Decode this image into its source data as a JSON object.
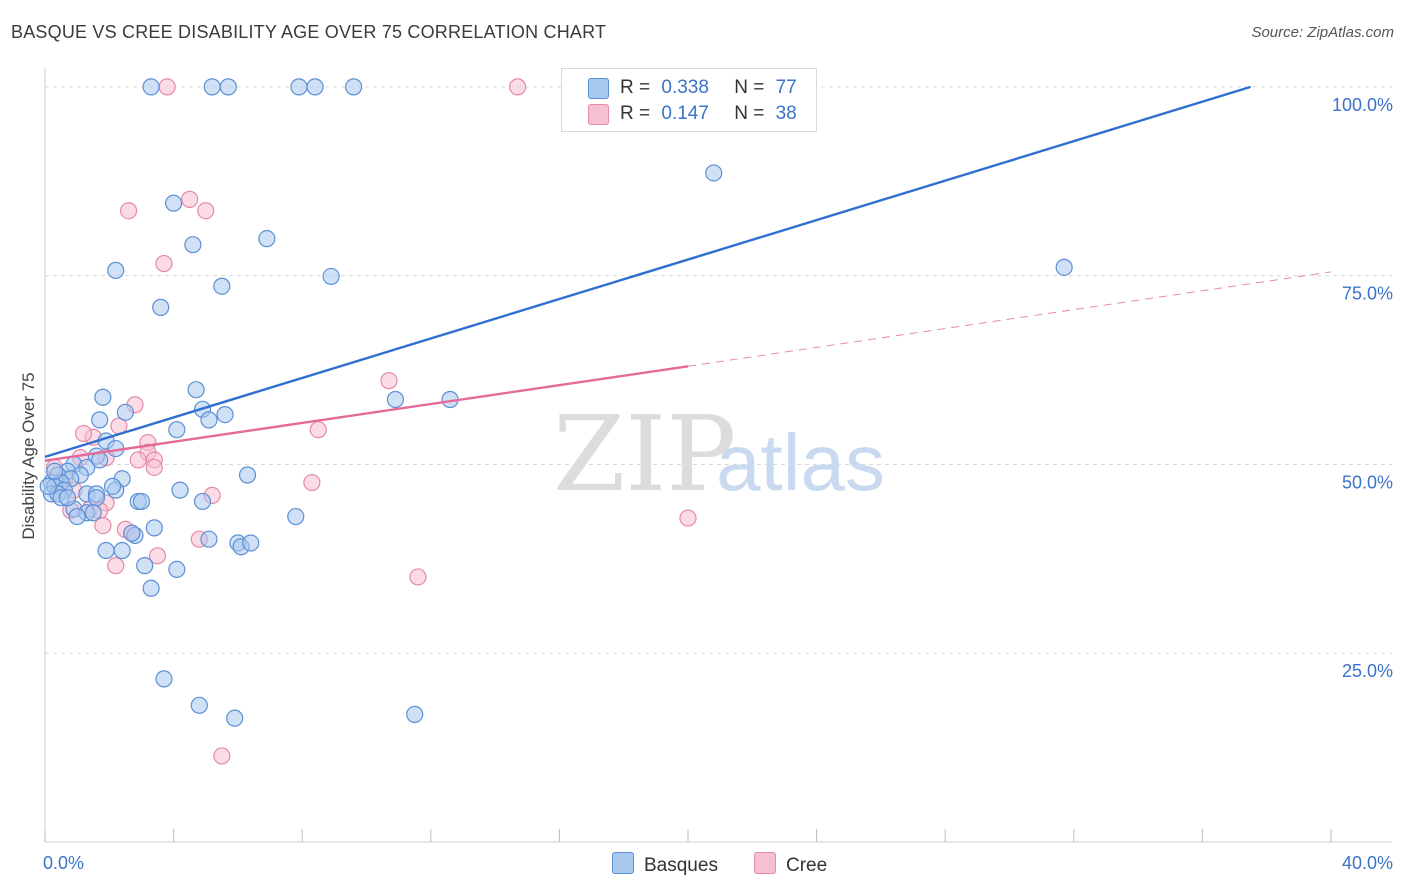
{
  "title": "BASQUE VS CREE DISABILITY AGE OVER 75 CORRELATION CHART",
  "source": "Source: ZipAtlas.com",
  "watermark": {
    "zip": "ZIP",
    "atlas": "atlas"
  },
  "legend": {
    "rows": [
      {
        "r_label": "R =",
        "r_value": "0.338",
        "n_label": "N =",
        "n_value": "77"
      },
      {
        "r_label": "R =",
        "r_value": "0.147",
        "n_label": "N =",
        "n_value": "38"
      }
    ]
  },
  "bottom_legend": {
    "basques": "Basques",
    "cree": "Cree"
  },
  "colors": {
    "basques_fill": "#a9c8ef",
    "basques_stroke": "#5b8fd6",
    "basques_line": "#2f6fd0",
    "cree_fill": "#f7c0d1",
    "cree_stroke": "#e58aa8",
    "cree_line": "#e46b98",
    "axis_text": "#3b73c9",
    "grid": "#d9d9d9"
  },
  "chart_data": {
    "type": "scatter",
    "title": "BASQUE VS CREE DISABILITY AGE OVER 75 CORRELATION CHART",
    "xlabel": "",
    "ylabel": "Disability Age Over 75",
    "xlim": [
      0,
      40
    ],
    "ylim": [
      0,
      102.5
    ],
    "x_tick_labels": [
      "0.0%",
      "40.0%"
    ],
    "y_ticks": [
      25,
      50,
      75,
      100
    ],
    "y_tick_labels": [
      "25.0%",
      "50.0%",
      "75.0%",
      "100.0%"
    ],
    "series": [
      {
        "name": "Basques",
        "r": 0.338,
        "n": 77,
        "trend": {
          "x0": 0,
          "y0": 51.0,
          "x1": 37.5,
          "y1": 100.0,
          "solid_until": 37.5
        },
        "points": [
          [
            3.3,
            100
          ],
          [
            5.2,
            100
          ],
          [
            5.7,
            100
          ],
          [
            7.9,
            100
          ],
          [
            8.4,
            100
          ],
          [
            9.6,
            100
          ],
          [
            20.8,
            88.6
          ],
          [
            4.0,
            84.6
          ],
          [
            6.9,
            79.9
          ],
          [
            4.6,
            79.1
          ],
          [
            2.2,
            75.7
          ],
          [
            8.9,
            74.9
          ],
          [
            5.5,
            73.6
          ],
          [
            3.6,
            70.8
          ],
          [
            31.7,
            76.1
          ],
          [
            4.7,
            59.9
          ],
          [
            1.8,
            58.9
          ],
          [
            4.9,
            57.3
          ],
          [
            2.5,
            56.9
          ],
          [
            5.6,
            56.6
          ],
          [
            1.7,
            55.9
          ],
          [
            5.1,
            55.9
          ],
          [
            10.9,
            58.6
          ],
          [
            12.6,
            58.6
          ],
          [
            4.1,
            54.6
          ],
          [
            1.9,
            53.1
          ],
          [
            2.2,
            52.1
          ],
          [
            1.6,
            51.1
          ],
          [
            0.9,
            50.0
          ],
          [
            1.3,
            49.6
          ],
          [
            0.7,
            49.1
          ],
          [
            1.1,
            48.6
          ],
          [
            0.4,
            48.6
          ],
          [
            0.8,
            48.1
          ],
          [
            0.5,
            47.6
          ],
          [
            2.4,
            48.1
          ],
          [
            0.2,
            47.6
          ],
          [
            0.3,
            47.1
          ],
          [
            0.6,
            46.6
          ],
          [
            0.2,
            46.1
          ],
          [
            0.4,
            46.1
          ],
          [
            1.3,
            46.1
          ],
          [
            1.6,
            46.1
          ],
          [
            0.5,
            45.6
          ],
          [
            1.6,
            45.6
          ],
          [
            2.2,
            46.6
          ],
          [
            2.1,
            47.1
          ],
          [
            6.3,
            48.6
          ],
          [
            4.2,
            46.6
          ],
          [
            2.9,
            45.1
          ],
          [
            3.0,
            45.1
          ],
          [
            4.9,
            45.1
          ],
          [
            0.9,
            44.1
          ],
          [
            1.3,
            43.6
          ],
          [
            1.5,
            43.6
          ],
          [
            1.0,
            43.1
          ],
          [
            7.8,
            43.1
          ],
          [
            3.4,
            41.6
          ],
          [
            2.8,
            40.6
          ],
          [
            2.7,
            40.9
          ],
          [
            5.1,
            40.1
          ],
          [
            6.0,
            39.6
          ],
          [
            6.1,
            39.1
          ],
          [
            6.4,
            39.6
          ],
          [
            1.9,
            38.6
          ],
          [
            2.4,
            38.6
          ],
          [
            3.1,
            36.6
          ],
          [
            4.1,
            36.1
          ],
          [
            3.3,
            33.6
          ],
          [
            3.7,
            21.6
          ],
          [
            4.8,
            18.1
          ],
          [
            5.9,
            16.4
          ],
          [
            11.5,
            16.9
          ],
          [
            0.1,
            47.1
          ],
          [
            0.3,
            49.1
          ],
          [
            0.7,
            45.6
          ],
          [
            1.7,
            50.6
          ]
        ]
      },
      {
        "name": "Cree",
        "r": 0.147,
        "n": 38,
        "trend": {
          "x0": 0,
          "y0": 50.5,
          "x1": 40,
          "y1": 75.5,
          "solid_until": 20
        },
        "points": [
          [
            3.8,
            100
          ],
          [
            14.7,
            100
          ],
          [
            4.5,
            85.1
          ],
          [
            2.6,
            83.6
          ],
          [
            5.0,
            83.6
          ],
          [
            3.7,
            76.6
          ],
          [
            10.7,
            61.1
          ],
          [
            2.8,
            57.9
          ],
          [
            2.3,
            55.1
          ],
          [
            8.5,
            54.6
          ],
          [
            1.5,
            53.6
          ],
          [
            1.2,
            54.1
          ],
          [
            3.2,
            52.9
          ],
          [
            3.2,
            51.6
          ],
          [
            1.1,
            50.9
          ],
          [
            1.9,
            50.9
          ],
          [
            2.9,
            50.6
          ],
          [
            3.4,
            50.6
          ],
          [
            3.4,
            49.6
          ],
          [
            0.3,
            49.6
          ],
          [
            0.6,
            48.1
          ],
          [
            0.3,
            47.1
          ],
          [
            0.9,
            46.6
          ],
          [
            8.3,
            47.6
          ],
          [
            5.2,
            45.9
          ],
          [
            1.9,
            44.9
          ],
          [
            1.4,
            44.1
          ],
          [
            1.7,
            43.9
          ],
          [
            0.8,
            43.9
          ],
          [
            1.8,
            41.9
          ],
          [
            2.5,
            41.4
          ],
          [
            2.7,
            40.9
          ],
          [
            4.8,
            40.1
          ],
          [
            3.5,
            37.9
          ],
          [
            2.2,
            36.6
          ],
          [
            11.6,
            35.1
          ],
          [
            20.0,
            42.9
          ],
          [
            5.5,
            11.4
          ]
        ]
      }
    ]
  }
}
